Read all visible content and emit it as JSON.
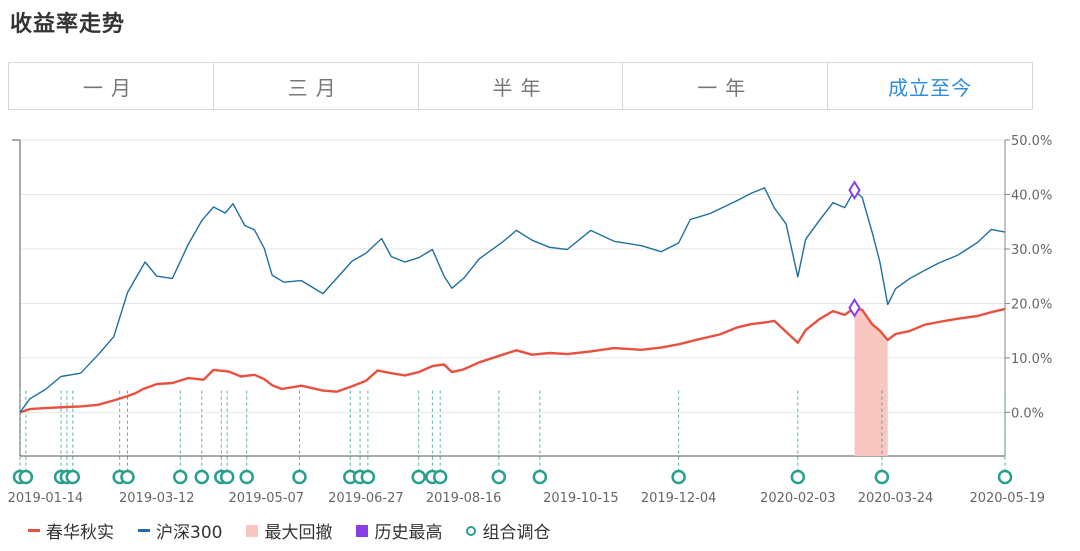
{
  "page_title": "收益率走势",
  "tabs": [
    {
      "label": "一月",
      "active": false
    },
    {
      "label": "三月",
      "active": false
    },
    {
      "label": "半年",
      "active": false
    },
    {
      "label": "一年",
      "active": false
    },
    {
      "label": "成立至今",
      "active": true
    }
  ],
  "colors": {
    "fund": "#e8513f",
    "index": "#1f6fa0",
    "drawdown": "#f7c7c0",
    "peak": "#8a3fe6",
    "rebalance": "#28a08c",
    "active_tab": "#2f8fdc"
  },
  "chart_data": {
    "type": "line",
    "title": "",
    "xlabel": "",
    "ylabel": "",
    "x_range": [
      "2019-01-01",
      "2020-05-19"
    ],
    "ylim": [
      -8,
      50
    ],
    "y_ticks": [
      "50.0%",
      "40.0%",
      "30.0%",
      "20.0%",
      "10.0%",
      "0.0%"
    ],
    "y_tick_values": [
      50,
      40,
      30,
      20,
      10,
      0
    ],
    "x_ticks": [
      "2019-01-14",
      "2019-03-12",
      "2019-05-07",
      "2019-06-27",
      "2019-08-16",
      "2019-10-15",
      "2019-12-04",
      "2020-02-03",
      "2020-03-24",
      "2020-05-19"
    ],
    "series": [
      {
        "name": "春华秋实",
        "color": "#e8513f",
        "points": [
          [
            "2019-01-01",
            0
          ],
          [
            "2019-01-06",
            0.6
          ],
          [
            "2019-01-14",
            0.8
          ],
          [
            "2019-01-25",
            1.0
          ],
          [
            "2019-02-01",
            1.1
          ],
          [
            "2019-02-10",
            1.4
          ],
          [
            "2019-02-18",
            2.2
          ],
          [
            "2019-02-25",
            3.0
          ],
          [
            "2019-03-01",
            3.5
          ],
          [
            "2019-03-05",
            4.3
          ],
          [
            "2019-03-12",
            5.2
          ],
          [
            "2019-03-20",
            5.4
          ],
          [
            "2019-03-28",
            6.3
          ],
          [
            "2019-04-05",
            6.0
          ],
          [
            "2019-04-10",
            7.8
          ],
          [
            "2019-04-18",
            7.5
          ],
          [
            "2019-04-24",
            6.6
          ],
          [
            "2019-05-01",
            6.9
          ],
          [
            "2019-05-06",
            6.1
          ],
          [
            "2019-05-10",
            5.0
          ],
          [
            "2019-05-15",
            4.3
          ],
          [
            "2019-05-25",
            4.9
          ],
          [
            "2019-06-05",
            4.0
          ],
          [
            "2019-06-12",
            3.8
          ],
          [
            "2019-06-20",
            4.8
          ],
          [
            "2019-06-27",
            5.8
          ],
          [
            "2019-07-03",
            7.7
          ],
          [
            "2019-07-10",
            7.2
          ],
          [
            "2019-07-17",
            6.8
          ],
          [
            "2019-07-24",
            7.4
          ],
          [
            "2019-07-31",
            8.5
          ],
          [
            "2019-08-06",
            8.8
          ],
          [
            "2019-08-10",
            7.4
          ],
          [
            "2019-08-16",
            7.9
          ],
          [
            "2019-08-24",
            9.2
          ],
          [
            "2019-09-05",
            10.6
          ],
          [
            "2019-09-12",
            11.4
          ],
          [
            "2019-09-20",
            10.6
          ],
          [
            "2019-09-29",
            10.9
          ],
          [
            "2019-10-08",
            10.7
          ],
          [
            "2019-10-20",
            11.2
          ],
          [
            "2019-11-01",
            11.8
          ],
          [
            "2019-11-15",
            11.5
          ],
          [
            "2019-11-25",
            11.9
          ],
          [
            "2019-12-04",
            12.5
          ],
          [
            "2019-12-15",
            13.5
          ],
          [
            "2019-12-25",
            14.3
          ],
          [
            "2020-01-03",
            15.6
          ],
          [
            "2020-01-10",
            16.2
          ],
          [
            "2020-01-17",
            16.5
          ],
          [
            "2020-01-22",
            16.8
          ],
          [
            "2020-02-03",
            12.8
          ],
          [
            "2020-02-07",
            15.1
          ],
          [
            "2020-02-14",
            17.1
          ],
          [
            "2020-02-21",
            18.6
          ],
          [
            "2020-02-27",
            17.9
          ],
          [
            "2020-03-03",
            19.2
          ],
          [
            "2020-03-07",
            18.8
          ],
          [
            "2020-03-12",
            16.2
          ],
          [
            "2020-03-16",
            15.0
          ],
          [
            "2020-03-20",
            13.3
          ],
          [
            "2020-03-24",
            14.4
          ],
          [
            "2020-03-31",
            14.9
          ],
          [
            "2020-04-08",
            16.1
          ],
          [
            "2020-04-15",
            16.6
          ],
          [
            "2020-04-25",
            17.2
          ],
          [
            "2020-05-05",
            17.7
          ],
          [
            "2020-05-12",
            18.4
          ],
          [
            "2020-05-19",
            19.0
          ]
        ]
      },
      {
        "name": "沪深300",
        "color": "#1f6fa0",
        "points": [
          [
            "2019-01-01",
            0
          ],
          [
            "2019-01-06",
            2.5
          ],
          [
            "2019-01-14",
            4.2
          ],
          [
            "2019-01-22",
            6.6
          ],
          [
            "2019-02-01",
            7.2
          ],
          [
            "2019-02-10",
            10.6
          ],
          [
            "2019-02-18",
            13.9
          ],
          [
            "2019-02-25",
            22.0
          ],
          [
            "2019-03-01",
            24.5
          ],
          [
            "2019-03-06",
            27.6
          ],
          [
            "2019-03-12",
            25.0
          ],
          [
            "2019-03-20",
            24.6
          ],
          [
            "2019-03-28",
            30.8
          ],
          [
            "2019-04-04",
            35.2
          ],
          [
            "2019-04-10",
            37.7
          ],
          [
            "2019-04-16",
            36.6
          ],
          [
            "2019-04-20",
            38.3
          ],
          [
            "2019-04-26",
            34.3
          ],
          [
            "2019-05-01",
            33.5
          ],
          [
            "2019-05-06",
            30.1
          ],
          [
            "2019-05-10",
            25.2
          ],
          [
            "2019-05-16",
            23.9
          ],
          [
            "2019-05-25",
            24.2
          ],
          [
            "2019-06-05",
            21.8
          ],
          [
            "2019-06-12",
            24.6
          ],
          [
            "2019-06-20",
            27.8
          ],
          [
            "2019-06-27",
            29.2
          ],
          [
            "2019-07-05",
            31.9
          ],
          [
            "2019-07-10",
            28.6
          ],
          [
            "2019-07-17",
            27.6
          ],
          [
            "2019-07-24",
            28.4
          ],
          [
            "2019-07-31",
            29.9
          ],
          [
            "2019-08-06",
            25.0
          ],
          [
            "2019-08-10",
            22.8
          ],
          [
            "2019-08-16",
            24.6
          ],
          [
            "2019-08-24",
            28.2
          ],
          [
            "2019-09-05",
            31.3
          ],
          [
            "2019-09-12",
            33.4
          ],
          [
            "2019-09-20",
            31.6
          ],
          [
            "2019-09-29",
            30.3
          ],
          [
            "2019-10-08",
            29.9
          ],
          [
            "2019-10-20",
            33.4
          ],
          [
            "2019-11-01",
            31.4
          ],
          [
            "2019-11-15",
            30.6
          ],
          [
            "2019-11-25",
            29.5
          ],
          [
            "2019-12-04",
            31.1
          ],
          [
            "2019-12-10",
            35.4
          ],
          [
            "2019-12-20",
            36.5
          ],
          [
            "2020-01-03",
            38.9
          ],
          [
            "2020-01-10",
            40.2
          ],
          [
            "2020-01-17",
            41.2
          ],
          [
            "2020-01-22",
            37.5
          ],
          [
            "2020-01-28",
            34.6
          ],
          [
            "2020-02-03",
            24.9
          ],
          [
            "2020-02-07",
            31.8
          ],
          [
            "2020-02-14",
            35.2
          ],
          [
            "2020-02-21",
            38.5
          ],
          [
            "2020-02-27",
            37.6
          ],
          [
            "2020-03-03",
            40.8
          ],
          [
            "2020-03-07",
            39.4
          ],
          [
            "2020-03-12",
            33.1
          ],
          [
            "2020-03-16",
            27.6
          ],
          [
            "2020-03-20",
            19.8
          ],
          [
            "2020-03-24",
            22.7
          ],
          [
            "2020-03-31",
            24.5
          ],
          [
            "2020-04-08",
            26.1
          ],
          [
            "2020-04-15",
            27.4
          ],
          [
            "2020-04-25",
            28.9
          ],
          [
            "2020-05-05",
            31.2
          ],
          [
            "2020-05-12",
            33.6
          ],
          [
            "2020-05-19",
            33.1
          ]
        ]
      }
    ],
    "max_drawdown": {
      "name": "最大回撤",
      "start": "2020-03-03",
      "end": "2020-03-20"
    },
    "historical_high": {
      "name": "历史最高",
      "date": "2020-03-03",
      "values": [
        19.2,
        40.8
      ]
    },
    "rebalance": {
      "name": "组合调仓",
      "dates": [
        "2019-01-01",
        "2019-01-04",
        "2019-01-22",
        "2019-01-25",
        "2019-01-28",
        "2019-02-21",
        "2019-02-25",
        "2019-03-24",
        "2019-04-04",
        "2019-04-14",
        "2019-04-17",
        "2019-04-27",
        "2019-05-24",
        "2019-06-19",
        "2019-06-24",
        "2019-06-28",
        "2019-07-24",
        "2019-07-31",
        "2019-08-04",
        "2019-09-03",
        "2019-09-24",
        "2019-12-04",
        "2020-02-03",
        "2020-03-17",
        "2020-05-19"
      ]
    }
  }
}
